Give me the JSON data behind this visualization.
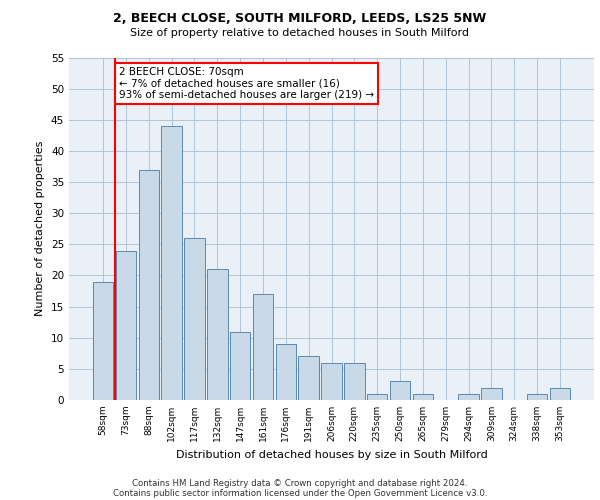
{
  "title1": "2, BEECH CLOSE, SOUTH MILFORD, LEEDS, LS25 5NW",
  "title2": "Size of property relative to detached houses in South Milford",
  "xlabel": "Distribution of detached houses by size in South Milford",
  "ylabel": "Number of detached properties",
  "categories": [
    "58sqm",
    "73sqm",
    "88sqm",
    "102sqm",
    "117sqm",
    "132sqm",
    "147sqm",
    "161sqm",
    "176sqm",
    "191sqm",
    "206sqm",
    "220sqm",
    "235sqm",
    "250sqm",
    "265sqm",
    "279sqm",
    "294sqm",
    "309sqm",
    "324sqm",
    "338sqm",
    "353sqm"
  ],
  "values": [
    19,
    24,
    37,
    44,
    26,
    21,
    11,
    17,
    9,
    7,
    6,
    6,
    1,
    3,
    1,
    0,
    1,
    2,
    0,
    1,
    2
  ],
  "bar_color": "#c9d9e8",
  "bar_edge_color": "#5a8ab0",
  "annotation_text": "2 BEECH CLOSE: 70sqm\n← 7% of detached houses are smaller (16)\n93% of semi-detached houses are larger (219) →",
  "annotation_box_color": "white",
  "annotation_box_edge_color": "red",
  "red_line_color": "red",
  "ylim": [
    0,
    55
  ],
  "yticks": [
    0,
    5,
    10,
    15,
    20,
    25,
    30,
    35,
    40,
    45,
    50,
    55
  ],
  "grid_color": "#b0c4d8",
  "bg_color": "#eaf0f8",
  "footer1": "Contains HM Land Registry data © Crown copyright and database right 2024.",
  "footer2": "Contains public sector information licensed under the Open Government Licence v3.0."
}
